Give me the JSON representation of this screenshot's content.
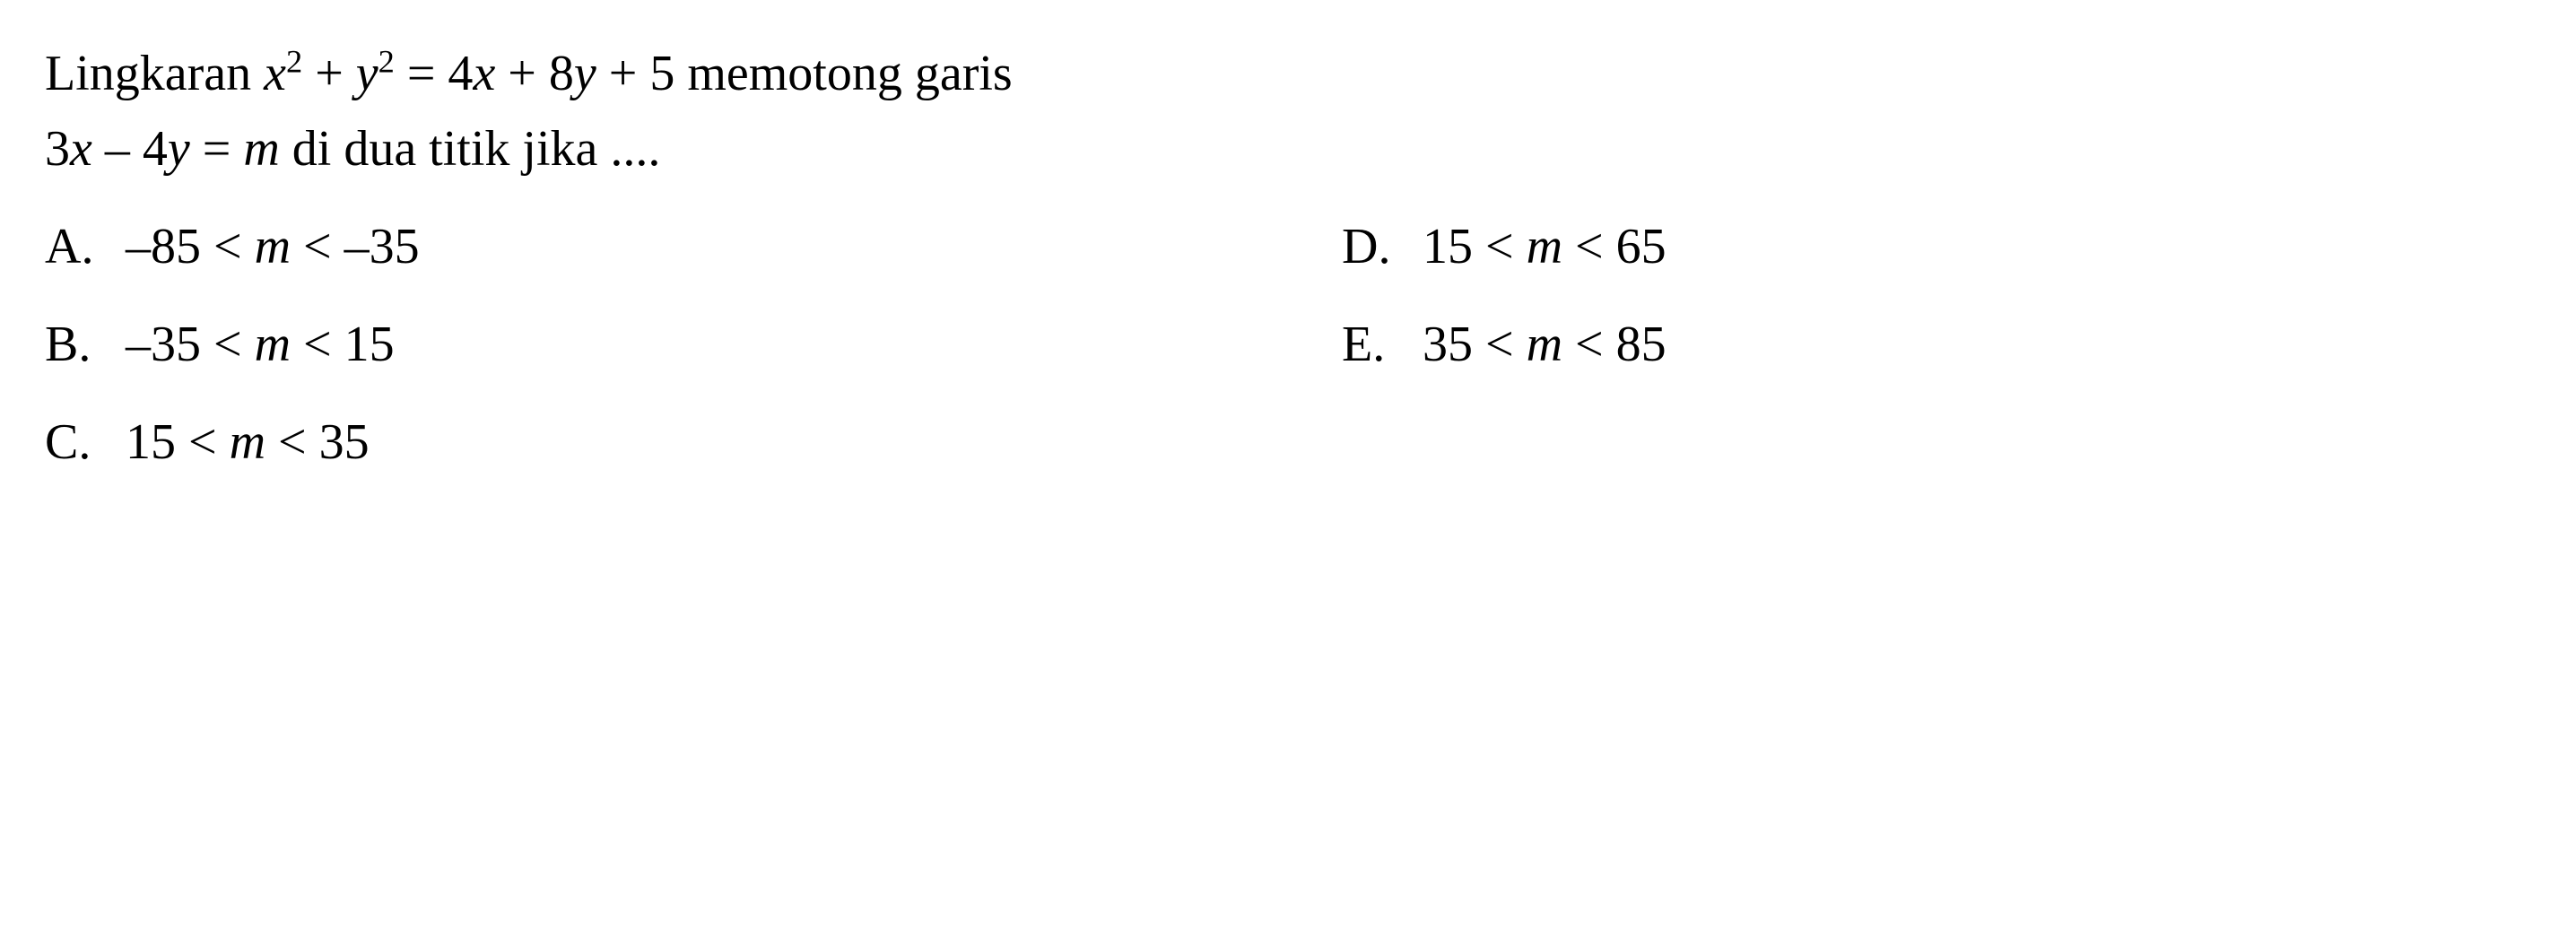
{
  "question": {
    "line1_part1": "Lingkaran ",
    "line1_eq_x": "x",
    "line1_sup1": "2",
    "line1_plus1": " + ",
    "line1_eq_y": "y",
    "line1_sup2": "2",
    "line1_eq_rest": " = 4",
    "line1_x2": "x",
    "line1_plus2": " + 8",
    "line1_y2": "y",
    "line1_end": " + 5 memotong garis",
    "line2_part1": "3",
    "line2_x": "x",
    "line2_minus": " – 4",
    "line2_y": "y",
    "line2_eq": " = ",
    "line2_m": "m",
    "line2_end": " di dua titik jika ...."
  },
  "options": {
    "a": {
      "letter": "A.",
      "pre": "–85 < ",
      "var": "m",
      "post": " < –35"
    },
    "b": {
      "letter": "B.",
      "pre": "–35 < ",
      "var": "m",
      "post": " < 15"
    },
    "c": {
      "letter": "C.",
      "pre": "15 < ",
      "var": "m",
      "post": " < 35"
    },
    "d": {
      "letter": "D.",
      "pre": "15 < ",
      "var": "m",
      "post": " < 65"
    },
    "e": {
      "letter": "E.",
      "pre": "35 < ",
      "var": "m",
      "post": " < 85"
    }
  },
  "styling": {
    "background_color": "#ffffff",
    "text_color": "#000000",
    "font_family": "Times New Roman",
    "font_size": 56
  }
}
